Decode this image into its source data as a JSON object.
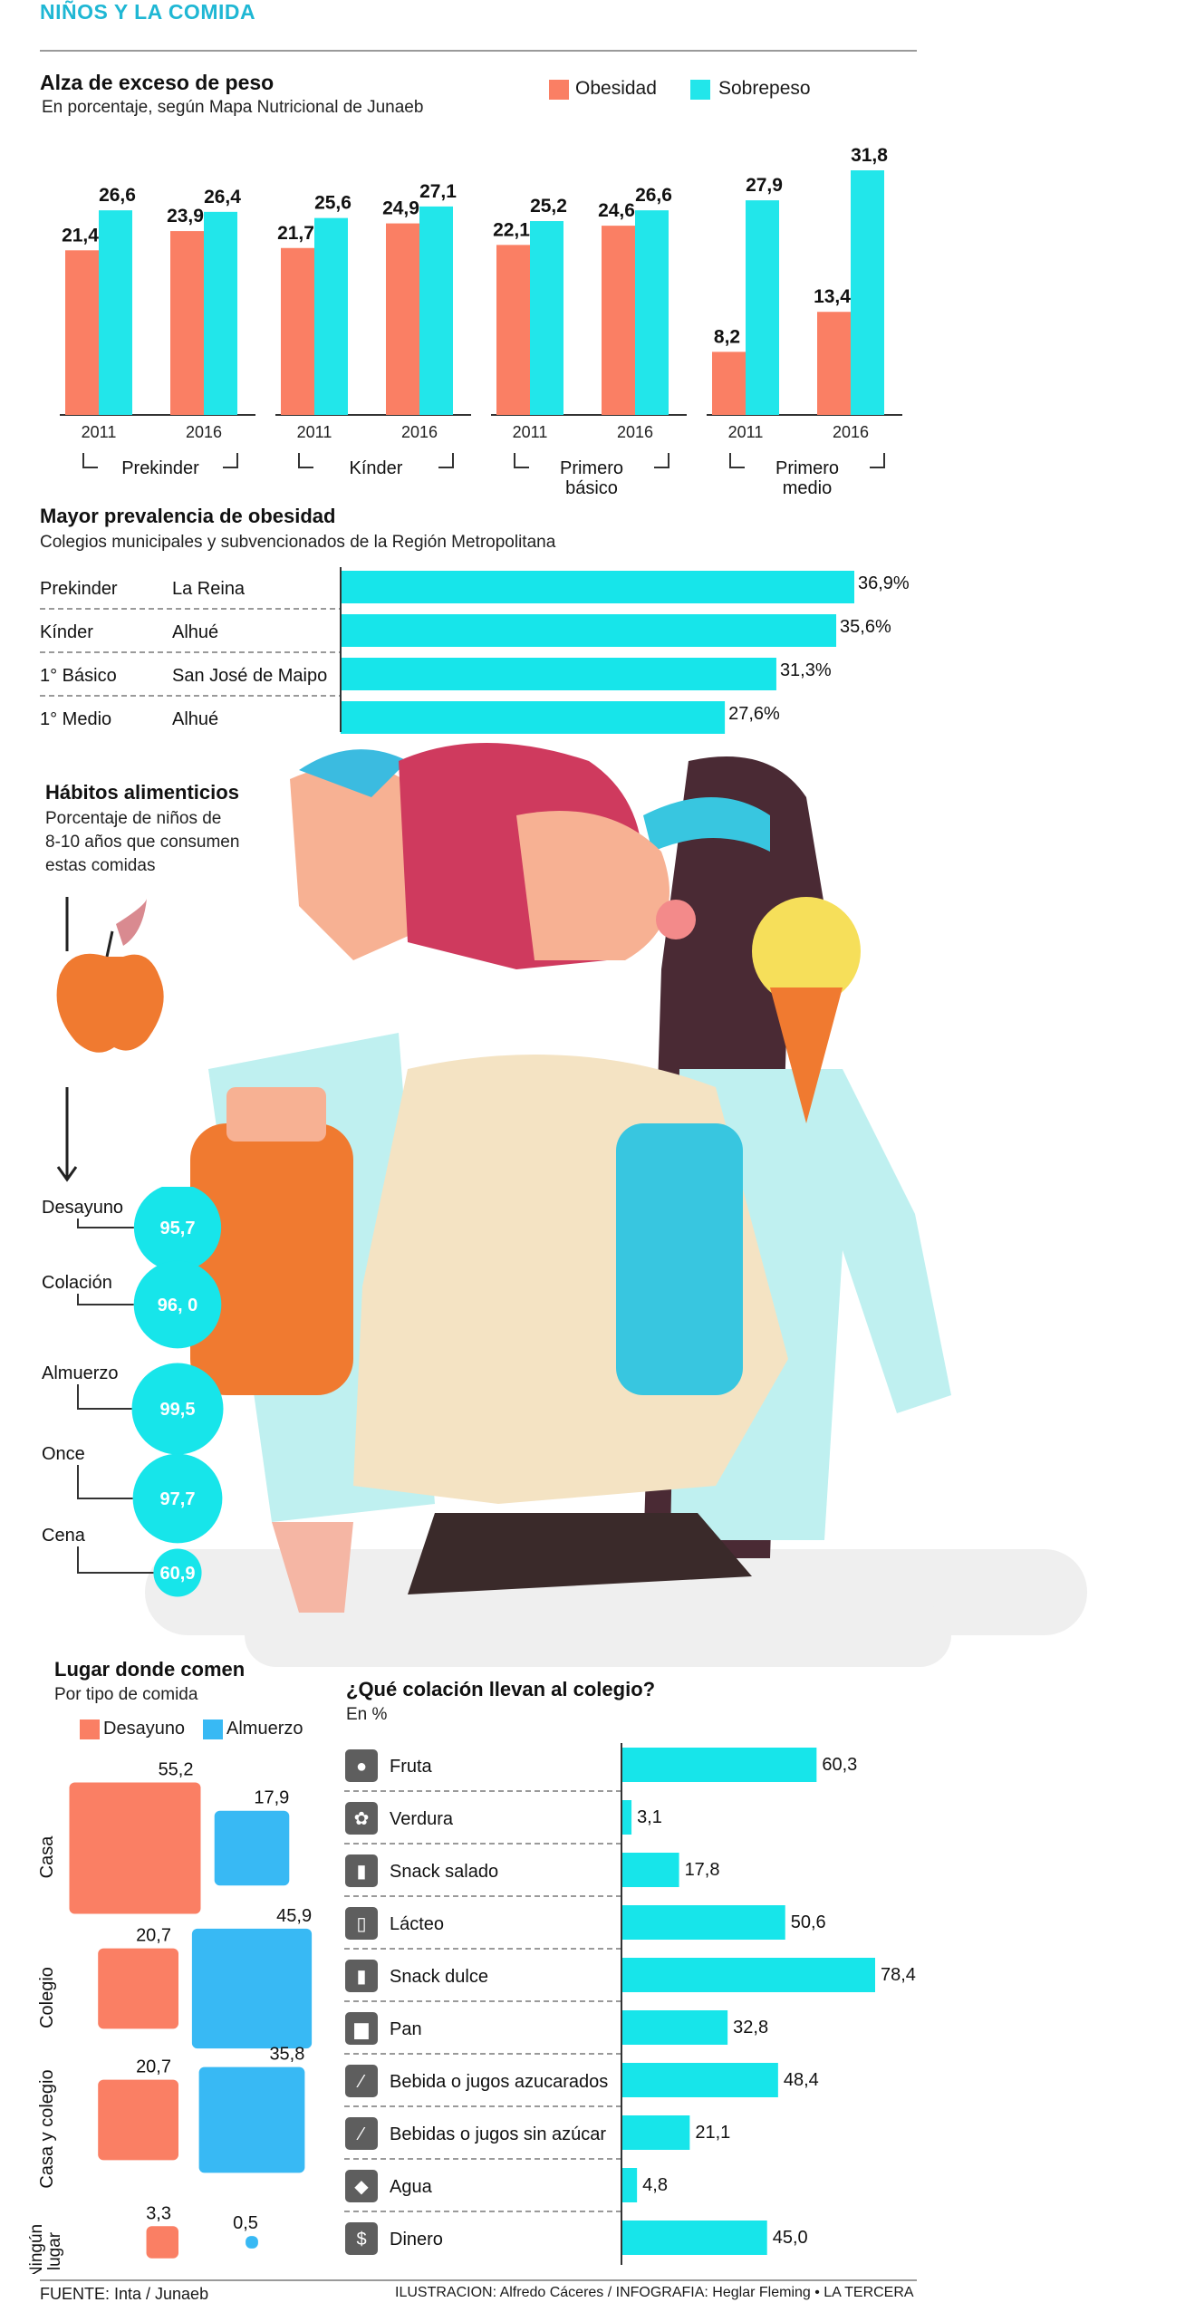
{
  "colors": {
    "obesidad": "#fa7f64",
    "sobrepeso": "#22e6ea",
    "cyan": "#17e5ea",
    "desayuno": "#fa7f64",
    "almuerzo": "#38b9f4",
    "title_blue": "#1fb7d4",
    "icon_box": "#5e5e5e"
  },
  "page": {
    "title": "NIÑOS Y LA COMIDA",
    "footer_left": "FUENTE: Inta / Junaeb",
    "footer_right": "ILUSTRACION: Alfredo Cáceres / INFOGRAFIA: Heglar Fleming • LA TERCERA"
  },
  "chart_data": [
    {
      "id": "exceso",
      "type": "bar",
      "title": "Alza de exceso de peso",
      "subtitle": "En porcentaje, según Mapa Nutricional de Junaeb",
      "legend": [
        "Obesidad",
        "Sobrepeso"
      ],
      "groups": [
        {
          "label": "Prekinder",
          "years": [
            "2011",
            "2016"
          ],
          "obesidad": [
            21.4,
            23.9
          ],
          "sobrepeso": [
            26.6,
            26.4
          ],
          "obesidad_labels": [
            "21,4",
            "23,9"
          ],
          "sobrepeso_labels": [
            "26,6",
            "26,4"
          ]
        },
        {
          "label": "Kínder",
          "years": [
            "2011",
            "2016"
          ],
          "obesidad": [
            21.7,
            24.9
          ],
          "sobrepeso": [
            25.6,
            27.1
          ],
          "obesidad_labels": [
            "21,7",
            "24,9"
          ],
          "sobrepeso_labels": [
            "25,6",
            "27,1"
          ]
        },
        {
          "label": "Primero básico",
          "years": [
            "2011",
            "2016"
          ],
          "obesidad": [
            22.1,
            24.6
          ],
          "sobrepeso": [
            25.2,
            26.6
          ],
          "obesidad_labels": [
            "22,1",
            "24,6"
          ],
          "sobrepeso_labels": [
            "25,2",
            "26,6"
          ]
        },
        {
          "label": "Primero medio",
          "years": [
            "2011",
            "2016"
          ],
          "obesidad": [
            8.2,
            13.4
          ],
          "sobrepeso": [
            27.9,
            31.8
          ],
          "obesidad_labels": [
            "8,2",
            "13,4"
          ],
          "sobrepeso_labels": [
            "27,9",
            "31,8"
          ]
        }
      ]
    },
    {
      "id": "prevalencia",
      "type": "bar",
      "title": "Mayor prevalencia de obesidad",
      "subtitle": "Colegios municipales y subvencionados de la Región Metropolitana",
      "rows": [
        {
          "level": "Prekinder",
          "place": "La Reina",
          "value": 36.9,
          "label": "36,9%"
        },
        {
          "level": "Kínder",
          "place": "Alhué",
          "value": 35.6,
          "label": "35,6%"
        },
        {
          "level": "1° Básico",
          "place": "San José de Maipo",
          "value": 31.3,
          "label": "31,3%"
        },
        {
          "level": "1° Medio",
          "place": "Alhué",
          "value": 27.6,
          "label": "27,6%"
        }
      ]
    },
    {
      "id": "habitos",
      "type": "scatter",
      "title": "Hábitos alimenticios",
      "subtitle_lines": [
        "Porcentaje de niños de",
        "8-10 años que consumen",
        "estas comidas"
      ],
      "items": [
        {
          "meal": "Desayuno",
          "value": 95.7,
          "label": "95,7"
        },
        {
          "meal": "Colación",
          "value": 96.0,
          "label": "96, 0"
        },
        {
          "meal": "Almuerzo",
          "value": 99.5,
          "label": "99,5"
        },
        {
          "meal": "Once",
          "value": 97.7,
          "label": "97,7"
        },
        {
          "meal": "Cena",
          "value": 60.9,
          "label": "60,9"
        }
      ]
    },
    {
      "id": "lugar",
      "type": "scatter",
      "title": "Lugar donde comen",
      "subtitle": "Por tipo de comida",
      "legend": [
        "Desayuno",
        "Almuerzo"
      ],
      "rows": [
        {
          "place": "Casa",
          "desayuno": 55.2,
          "almuerzo": 17.9,
          "desayuno_label": "55,2",
          "almuerzo_label": "17,9"
        },
        {
          "place": "Colegio",
          "desayuno": 20.7,
          "almuerzo": 45.9,
          "desayuno_label": "20,7",
          "almuerzo_label": "45,9"
        },
        {
          "place": "Casa y colegio",
          "desayuno": 20.7,
          "almuerzo": 35.8,
          "desayuno_label": "20,7",
          "almuerzo_label": "35,8"
        },
        {
          "place": "Ningún lugar",
          "desayuno": 3.3,
          "almuerzo": 0.5,
          "desayuno_label": "3,3",
          "almuerzo_label": "0,5"
        }
      ]
    },
    {
      "id": "colacion",
      "type": "bar",
      "title": "¿Qué colación llevan al colegio?",
      "subtitle": "En %",
      "rows": [
        {
          "label": "Fruta",
          "value": 60.3,
          "value_label": "60,3",
          "icon": "apple-icon"
        },
        {
          "label": "Verdura",
          "value": 3.1,
          "value_label": "3,1",
          "icon": "lettuce-icon"
        },
        {
          "label": "Snack salado",
          "value": 17.8,
          "value_label": "17,8",
          "icon": "snack-bag-icon"
        },
        {
          "label": "Lácteo",
          "value": 50.6,
          "value_label": "50,6",
          "icon": "milk-icon"
        },
        {
          "label": "Snack dulce",
          "value": 78.4,
          "value_label": "78,4",
          "icon": "candy-bag-icon"
        },
        {
          "label": "Pan",
          "value": 32.8,
          "value_label": "32,8",
          "icon": "bread-icon"
        },
        {
          "label": "Bebida o jugos azucarados",
          "value": 48.4,
          "value_label": "48,4",
          "icon": "sugary-bottle-icon"
        },
        {
          "label": "Bebidas o jugos sin azúcar",
          "value": 21.1,
          "value_label": "21,1",
          "icon": "bottle-icon"
        },
        {
          "label": "Agua",
          "value": 4.8,
          "value_label": "4,8",
          "icon": "water-drop-icon"
        },
        {
          "label": "Dinero",
          "value": 45.0,
          "value_label": "45,0",
          "icon": "money-icon"
        }
      ]
    }
  ]
}
